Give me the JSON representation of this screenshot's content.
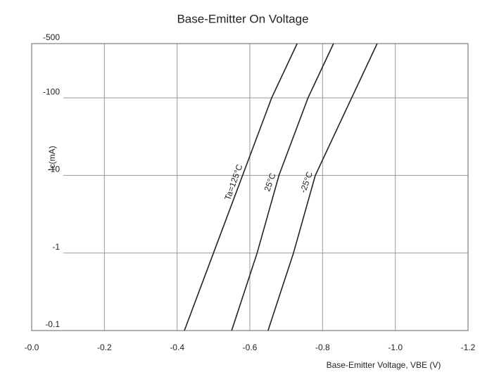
{
  "chart_data": {
    "type": "line",
    "title": "Base-Emitter On Voltage",
    "x_label": "Base-Emitter Voltage, VBE (V)",
    "y_label": "Ic(mA)",
    "xlim": [
      0,
      -1.2
    ],
    "xticks": [
      {
        "value": 0,
        "label": "-0.0"
      },
      -0.2,
      -0.4,
      -0.6,
      -0.8,
      {
        "value": -1,
        "label": "-1.0"
      },
      -1.2
    ],
    "ylim": [
      -0.1,
      -500
    ],
    "yticks": [
      -500,
      -100,
      -10,
      -1,
      -0.1
    ],
    "log_y": true,
    "grid": true,
    "series": [
      {
        "name": "Ta=125°C",
        "color": "#222222",
        "x": [
          -0.42,
          -0.5,
          -0.58,
          -0.66,
          -0.73
        ],
        "values": [
          -0.1,
          -1,
          -10,
          -100,
          -500
        ]
      },
      {
        "name": "25°C",
        "color": "#222222",
        "x": [
          -0.55,
          -0.62,
          -0.68,
          -0.76,
          -0.83
        ],
        "values": [
          -0.1,
          -1,
          -10,
          -100,
          -500
        ]
      },
      {
        "name": "-25°C",
        "color": "#222222",
        "x": [
          -0.65,
          -0.72,
          -0.78,
          -0.88,
          -0.95
        ],
        "values": [
          -0.1,
          -1,
          -10,
          -100,
          -500
        ]
      }
    ]
  }
}
